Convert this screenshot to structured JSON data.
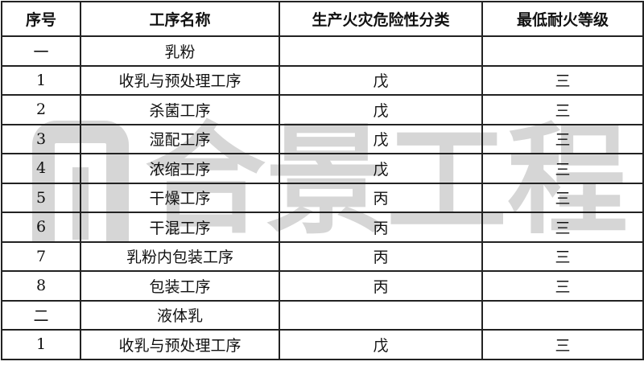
{
  "headers": [
    "序号",
    "工序名称",
    "生产火灾危险性分类",
    "最低耐火等级"
  ],
  "rows": [
    [
      "一",
      "乳粉",
      "",
      ""
    ],
    [
      "1",
      "收乳与预处理工序",
      "戊",
      "三"
    ],
    [
      "2",
      "杀菌工序",
      "戊",
      "三"
    ],
    [
      "3",
      "湿配工序",
      "戊",
      "三"
    ],
    [
      "4",
      "浓缩工序",
      "戊",
      "三"
    ],
    [
      "5",
      "干燥工序",
      "丙",
      "三"
    ],
    [
      "6",
      "干混工序",
      "丙",
      "三"
    ],
    [
      "7",
      "乳粉内包装工序",
      "丙",
      "三"
    ],
    [
      "8",
      "包装工序",
      "丙",
      "三"
    ],
    [
      "二",
      "液体乳",
      "",
      ""
    ],
    [
      "1",
      "收乳与预处理工序",
      "戊",
      "三"
    ]
  ],
  "watermark": "合景工程"
}
